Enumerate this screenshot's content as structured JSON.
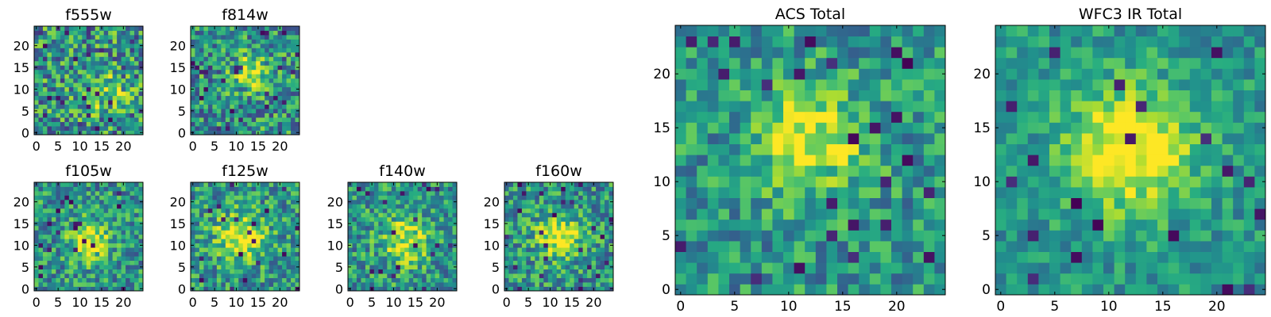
{
  "chart_data": [
    {
      "type": "heatmap",
      "title": "f555w",
      "size": 25,
      "colormap": "viridis",
      "xticks": [
        "0",
        "5",
        "10",
        "15",
        "20"
      ],
      "yticks": [
        "0",
        "5",
        "10",
        "15",
        "20"
      ],
      "xlim": [
        0,
        24
      ],
      "ylim": [
        0,
        24
      ],
      "source_peak": [
        16,
        9
      ],
      "source_width": 3,
      "source_amp": 0.3,
      "noise": 0.45,
      "seed": 11
    },
    {
      "type": "heatmap",
      "title": "f814w",
      "size": 25,
      "colormap": "viridis",
      "xticks": [
        "0",
        "5",
        "10",
        "15",
        "20"
      ],
      "yticks": [
        "0",
        "5",
        "10",
        "15",
        "20"
      ],
      "xlim": [
        0,
        24
      ],
      "ylim": [
        0,
        24
      ],
      "source_peak": [
        13,
        14
      ],
      "source_width": 2.5,
      "source_amp": 0.5,
      "noise": 0.4,
      "seed": 23
    },
    {
      "type": "heatmap",
      "title": "f105w",
      "size": 25,
      "colormap": "viridis",
      "xticks": [
        "0",
        "5",
        "10",
        "15",
        "20"
      ],
      "yticks": [
        "0",
        "5",
        "10",
        "15",
        "20"
      ],
      "xlim": [
        0,
        24
      ],
      "ylim": [
        0,
        24
      ],
      "source_peak": [
        12,
        11
      ],
      "source_width": 3,
      "source_amp": 0.5,
      "noise": 0.35,
      "seed": 37
    },
    {
      "type": "heatmap",
      "title": "f125w",
      "size": 25,
      "colormap": "viridis",
      "xticks": [
        "0",
        "5",
        "10",
        "15",
        "20"
      ],
      "yticks": [
        "0",
        "5",
        "10",
        "15",
        "20"
      ],
      "xlim": [
        0,
        24
      ],
      "ylim": [
        0,
        24
      ],
      "source_peak": [
        11,
        12
      ],
      "source_width": 4,
      "source_amp": 0.45,
      "noise": 0.35,
      "seed": 41
    },
    {
      "type": "heatmap",
      "title": "f140w",
      "size": 25,
      "colormap": "viridis",
      "xticks": [
        "0",
        "5",
        "10",
        "15",
        "20"
      ],
      "yticks": [
        "0",
        "5",
        "10",
        "15",
        "20"
      ],
      "xlim": [
        0,
        24
      ],
      "ylim": [
        0,
        24
      ],
      "source_peak": [
        13,
        11
      ],
      "source_width": 4,
      "source_amp": 0.4,
      "noise": 0.35,
      "seed": 53
    },
    {
      "type": "heatmap",
      "title": "f160w",
      "size": 25,
      "colormap": "viridis",
      "xticks": [
        "0",
        "5",
        "10",
        "15",
        "20"
      ],
      "yticks": [
        "0",
        "5",
        "10",
        "15",
        "20"
      ],
      "xlim": [
        0,
        24
      ],
      "ylim": [
        0,
        24
      ],
      "source_peak": [
        12,
        12
      ],
      "source_width": 3.5,
      "source_amp": 0.5,
      "noise": 0.35,
      "seed": 67
    },
    {
      "type": "heatmap",
      "title": "ACS Total",
      "size": 25,
      "colormap": "viridis",
      "xticks": [
        "0",
        "5",
        "10",
        "15",
        "20"
      ],
      "yticks": [
        "0",
        "5",
        "10",
        "15",
        "20"
      ],
      "xlim": [
        0,
        24
      ],
      "ylim": [
        0,
        24
      ],
      "source_peak": [
        12,
        14
      ],
      "source_width": 3.5,
      "source_amp": 0.45,
      "noise": 0.3,
      "seed": 71
    },
    {
      "type": "heatmap",
      "title": "WFC3 IR Total",
      "size": 25,
      "colormap": "viridis",
      "xticks": [
        "0",
        "5",
        "10",
        "15",
        "20"
      ],
      "yticks": [
        "0",
        "5",
        "10",
        "15",
        "20"
      ],
      "xlim": [
        0,
        24
      ],
      "ylim": [
        0,
        24
      ],
      "source_peak": [
        12,
        13
      ],
      "source_width": 4,
      "source_amp": 0.55,
      "noise": 0.22,
      "seed": 83
    }
  ]
}
